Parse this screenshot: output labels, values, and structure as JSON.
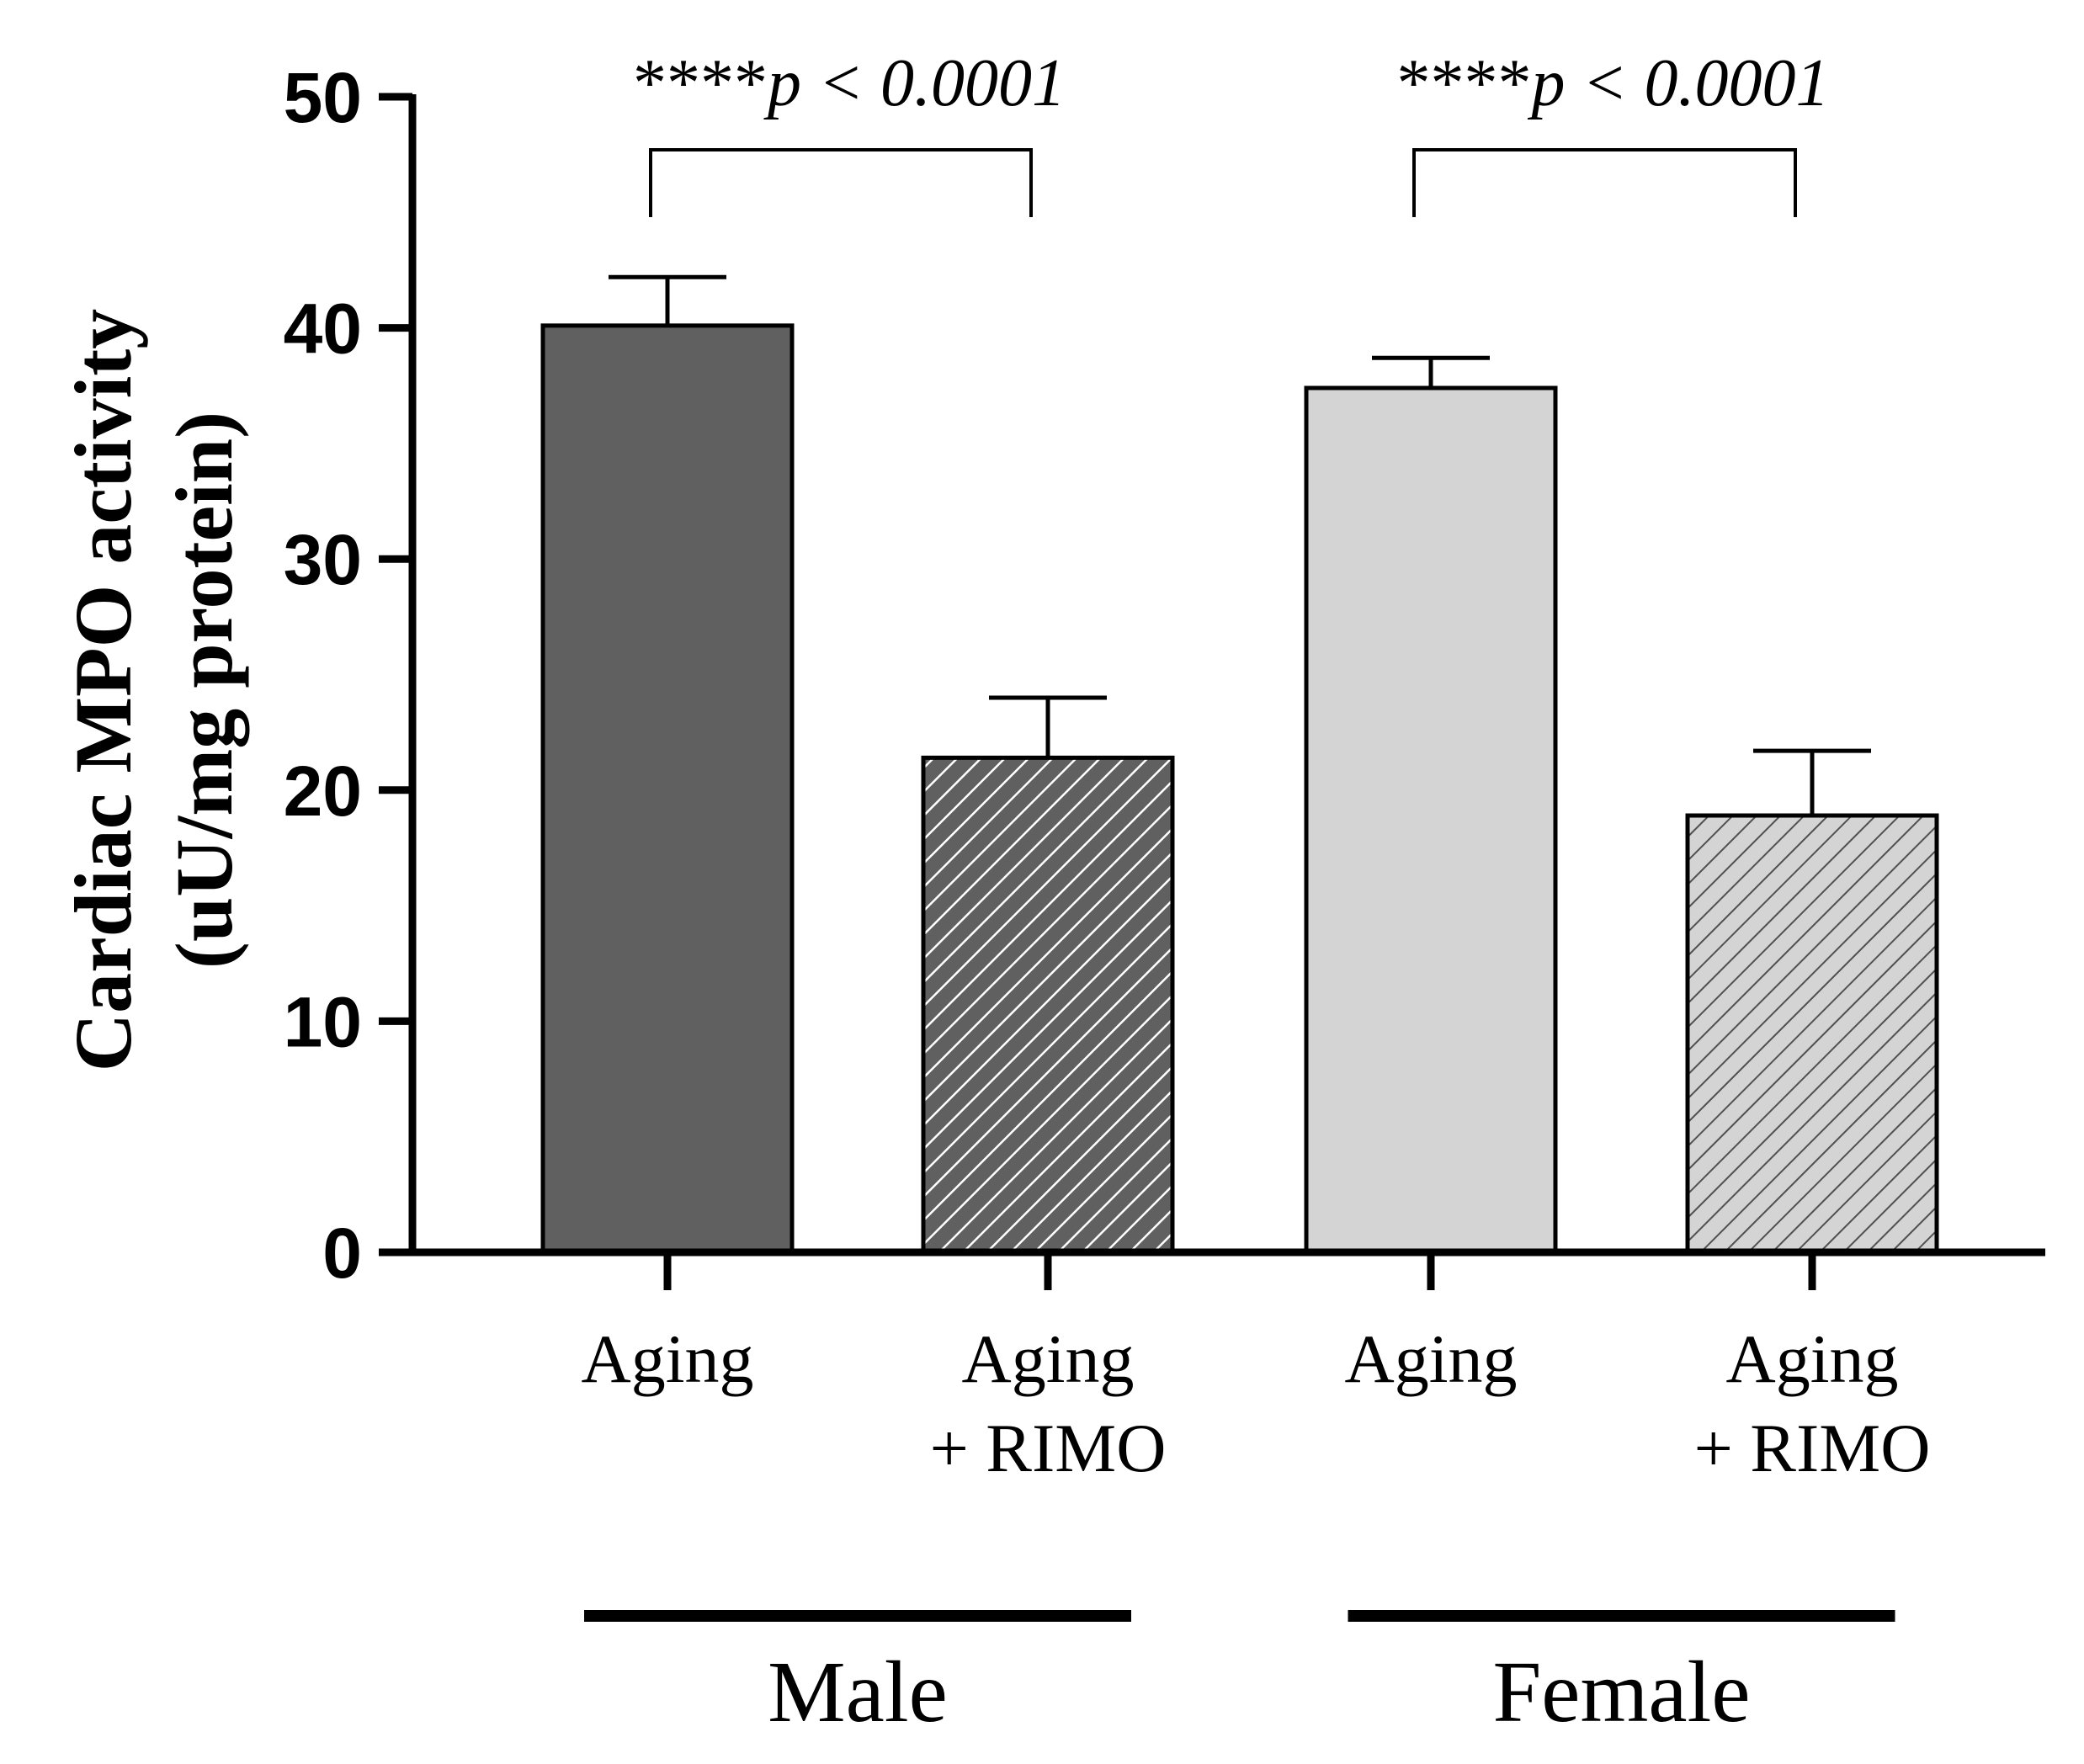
{
  "chart_data": {
    "type": "bar",
    "ylabel_line1": "Cardiac MPO activity",
    "ylabel_line2": "(uU/mg protein)",
    "ylim": [
      0,
      50
    ],
    "yticks": [
      "0",
      "10",
      "20",
      "30",
      "40",
      "50"
    ],
    "grid": false,
    "bars": [
      {
        "label_line1": "Aging",
        "label_line2": "",
        "group": "Male",
        "value": 40.1,
        "error": 2.1,
        "fill": "#606060",
        "hatched": false
      },
      {
        "label_line1": "Aging",
        "label_line2": "+ RIMO",
        "group": "Male",
        "value": 21.4,
        "error": 2.6,
        "fill": "#606060",
        "hatched": true
      },
      {
        "label_line1": "Aging",
        "label_line2": "",
        "group": "Female",
        "value": 37.4,
        "error": 1.3,
        "fill": "#d4d4d4",
        "hatched": false
      },
      {
        "label_line1": "Aging",
        "label_line2": "+ RIMO",
        "group": "Female",
        "value": 18.9,
        "error": 2.8,
        "fill": "#d4d4d4",
        "hatched": true
      }
    ],
    "groups": [
      {
        "name": "Male",
        "bars": [
          0,
          1
        ]
      },
      {
        "name": "Female",
        "bars": [
          2,
          3
        ]
      }
    ],
    "significance": [
      {
        "stars": "****",
        "text": "p < 0.0001",
        "between": [
          0,
          1
        ]
      },
      {
        "stars": "****",
        "text": "p < 0.0001",
        "between": [
          2,
          3
        ]
      }
    ]
  }
}
